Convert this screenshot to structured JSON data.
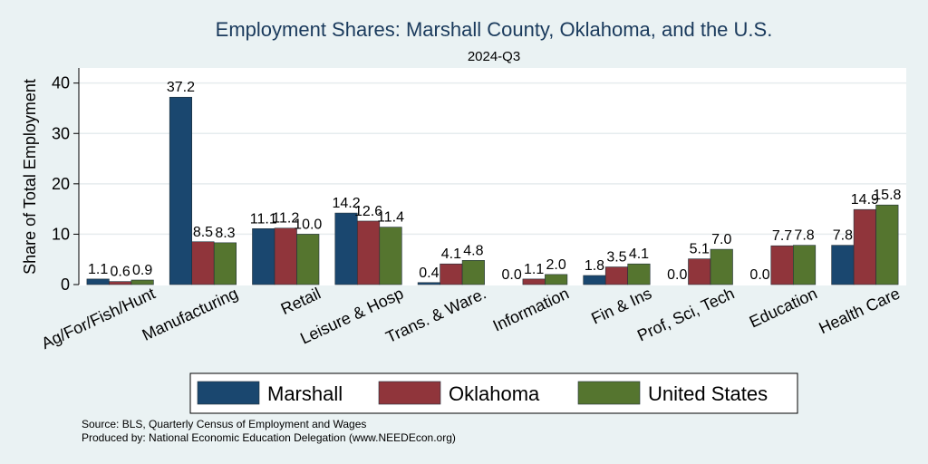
{
  "chart_data": {
    "type": "bar",
    "title": "Employment Shares: Marshall County, Oklahoma, and the U.S.",
    "subtitle": "2024-Q3",
    "xlabel": "",
    "ylabel": "Share of Total Employment",
    "ylim": [
      0,
      43
    ],
    "yticks": [
      0,
      10,
      20,
      30,
      40
    ],
    "grid": true,
    "legend_position": "bottom",
    "categories": [
      "Ag/For/Fish/Hunt",
      "Manufacturing",
      "Retail",
      "Leisure & Hosp",
      "Trans. & Ware.",
      "Information",
      "Fin & Ins",
      "Prof, Sci, Tech",
      "Education",
      "Health Care"
    ],
    "series": [
      {
        "name": "Marshall",
        "color": "#1a476f",
        "values": [
          1.1,
          37.2,
          11.1,
          14.2,
          0.4,
          0.0,
          1.8,
          0.0,
          0.0,
          7.8
        ],
        "labels": [
          "1.1",
          "37.2",
          "11.1",
          "14.2",
          "0.4",
          "0.0",
          "1.8",
          "0.0",
          "0.0",
          "7.8"
        ]
      },
      {
        "name": "Oklahoma",
        "color": "#90353b",
        "values": [
          0.6,
          8.5,
          11.2,
          12.6,
          4.1,
          1.1,
          3.5,
          5.1,
          7.7,
          14.9
        ],
        "labels": [
          "0.6",
          "8.5",
          "11.2",
          "12.6",
          "4.1",
          "1.1",
          "3.5",
          "5.1",
          "7.7",
          "14.9"
        ]
      },
      {
        "name": "United States",
        "color": "#55752f",
        "values": [
          0.9,
          8.3,
          10.0,
          11.4,
          4.8,
          2.0,
          4.1,
          7.0,
          7.8,
          15.8
        ],
        "labels": [
          "0.9",
          "8.3",
          "10.0",
          "11.4",
          "4.8",
          "2.0",
          "4.1",
          "7.0",
          "7.8",
          "15.8"
        ]
      }
    ],
    "notes": [
      "Source: BLS, Quarterly Census of Employment and Wages",
      "Produced by: National Economic Education Delegation (www.NEEDEcon.org)"
    ]
  }
}
